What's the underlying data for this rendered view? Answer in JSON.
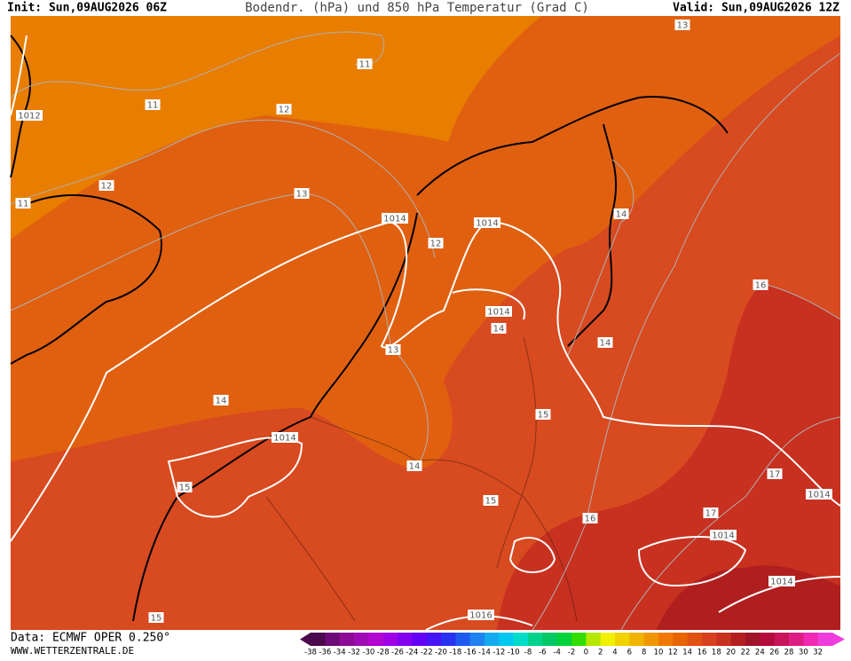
{
  "header": {
    "init": "Init: Sun,09AUG2026 06Z",
    "title": "Bodendr. (hPa) und 850 hPa Temperatur (Grad C)",
    "valid": "Valid: Sun,09AUG2026 12Z"
  },
  "map": {
    "labels": [
      13,
      11,
      1012,
      11,
      12,
      12,
      13,
      11,
      1014,
      1014,
      12,
      14,
      16,
      1014,
      14,
      13,
      14,
      14,
      15,
      1014,
      14,
      17,
      15,
      1014,
      15,
      16,
      17,
      1014,
      1014,
      15,
      1016
    ]
  },
  "footer": {
    "source": "Data: ECMWF OPER 0.250°",
    "site": "WWW.WETTERZENTRALE.DE"
  },
  "colorbar": {
    "labels": [
      -38,
      -36,
      -34,
      -32,
      -30,
      -28,
      -26,
      -24,
      -22,
      -20,
      -18,
      -16,
      -14,
      -12,
      -10,
      -8,
      -6,
      -4,
      -2,
      0,
      2,
      4,
      6,
      8,
      10,
      12,
      14,
      16,
      18,
      20,
      22,
      24,
      26,
      28,
      30,
      32
    ],
    "colors": [
      "#4b0a4b",
      "#6e0a78",
      "#8c0a96",
      "#a00ab4",
      "#b400d2",
      "#a000e6",
      "#8200f0",
      "#6400f5",
      "#4614f5",
      "#2832f0",
      "#1e5af0",
      "#1e82f0",
      "#14aaf0",
      "#00c8f0",
      "#00dcc8",
      "#00d28c",
      "#00c864",
      "#00d23c",
      "#32dc00",
      "#b4e600",
      "#f0f000",
      "#f0d200",
      "#f0b400",
      "#f09600",
      "#f07800",
      "#e86400",
      "#e05010",
      "#d84020",
      "#c83020",
      "#b41e1e",
      "#a01428",
      "#b40a3c",
      "#c8145a",
      "#dc1e82",
      "#f028b4",
      "#f03cdc"
    ]
  }
}
